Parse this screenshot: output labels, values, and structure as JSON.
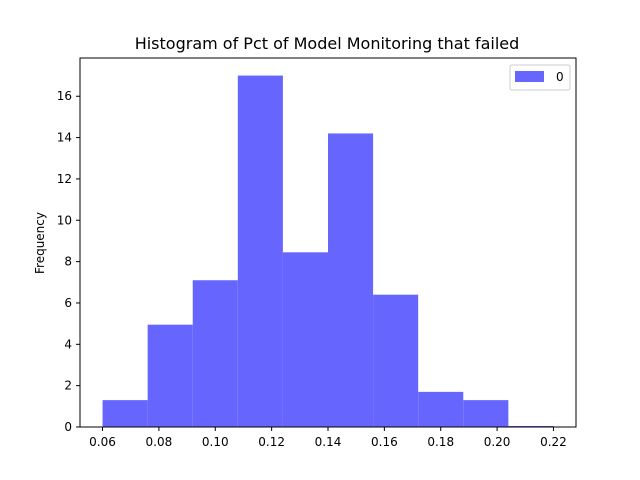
{
  "chart_data": {
    "type": "bar",
    "title": "Histogram of Pct of Model Monitoring that failed",
    "xlabel": "",
    "ylabel": "Frequency",
    "xlim": [
      0.052,
      0.228
    ],
    "ylim": [
      0,
      17.85
    ],
    "xticks": [
      0.06,
      0.08,
      0.1,
      0.12,
      0.14,
      0.16,
      0.18,
      0.2,
      0.22
    ],
    "xtick_labels": [
      "0.06",
      "0.08",
      "0.10",
      "0.12",
      "0.14",
      "0.16",
      "0.18",
      "0.20",
      "0.22"
    ],
    "yticks": [
      0,
      2,
      4,
      6,
      8,
      10,
      12,
      14,
      16
    ],
    "ytick_labels": [
      "0",
      "2",
      "4",
      "6",
      "8",
      "10",
      "12",
      "14",
      "16"
    ],
    "bin_edges": [
      0.06,
      0.076,
      0.092,
      0.108,
      0.124,
      0.14,
      0.156,
      0.172,
      0.188,
      0.204,
      0.22
    ],
    "series": [
      {
        "name": "0",
        "color": "#6666ff",
        "values": [
          1.3,
          4.95,
          7.1,
          17.0,
          8.45,
          14.2,
          6.4,
          1.7,
          1.3,
          0.05
        ]
      }
    ],
    "legend": "top-right",
    "grid": false
  }
}
